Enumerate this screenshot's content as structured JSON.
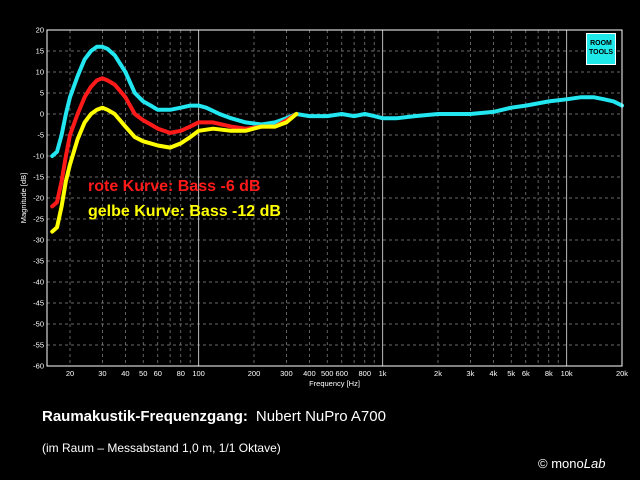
{
  "chart_data": {
    "type": "line",
    "xscale": "log",
    "xlim": [
      15,
      20000
    ],
    "ylim": [
      -60,
      20
    ],
    "grid": true,
    "xlabel": "Frequency [Hz]",
    "ylabel": "Magnitude [dB]",
    "xticks": [
      20,
      30,
      40,
      50,
      60,
      80,
      100,
      200,
      300,
      400,
      500,
      600,
      800,
      1000,
      2000,
      3000,
      4000,
      5000,
      6000,
      8000,
      10000,
      20000
    ],
    "xtick_labels": [
      "20",
      "30",
      "40",
      "50",
      "60",
      "80",
      "100",
      "200",
      "300",
      "400",
      "500",
      "600",
      "800",
      "1k",
      "2k",
      "3k",
      "4k",
      "5k",
      "6k",
      "8k",
      "10k",
      "20k"
    ],
    "yticks": [
      20,
      15,
      10,
      5,
      0,
      -5,
      -10,
      -15,
      -20,
      -25,
      -30,
      -35,
      -40,
      -45,
      -50,
      -55,
      -60
    ],
    "series": [
      {
        "color": "#22e6f0",
        "points": [
          [
            16,
            -10
          ],
          [
            17,
            -9
          ],
          [
            18,
            -5
          ],
          [
            19,
            0
          ],
          [
            20,
            4
          ],
          [
            22,
            9
          ],
          [
            24,
            13
          ],
          [
            26,
            15
          ],
          [
            28,
            16
          ],
          [
            30,
            16
          ],
          [
            32,
            15.5
          ],
          [
            35,
            14
          ],
          [
            40,
            10
          ],
          [
            45,
            5
          ],
          [
            50,
            3
          ],
          [
            55,
            2
          ],
          [
            60,
            1
          ],
          [
            70,
            1
          ],
          [
            80,
            1.5
          ],
          [
            90,
            2
          ],
          [
            100,
            2
          ],
          [
            110,
            1.5
          ],
          [
            130,
            0
          ],
          [
            150,
            -1
          ],
          [
            180,
            -2
          ],
          [
            220,
            -2.5
          ],
          [
            260,
            -2
          ],
          [
            300,
            -1
          ],
          [
            340,
            0
          ],
          [
            400,
            -0.5
          ],
          [
            500,
            -0.5
          ],
          [
            600,
            0
          ],
          [
            700,
            -0.5
          ],
          [
            800,
            0
          ],
          [
            900,
            -0.5
          ],
          [
            1000,
            -1
          ],
          [
            1200,
            -1
          ],
          [
            1500,
            -0.5
          ],
          [
            2000,
            0
          ],
          [
            3000,
            0
          ],
          [
            4000,
            0.5
          ],
          [
            5000,
            1.5
          ],
          [
            6000,
            2
          ],
          [
            8000,
            3
          ],
          [
            10000,
            3.5
          ],
          [
            12000,
            4
          ],
          [
            14000,
            4
          ],
          [
            16000,
            3.5
          ],
          [
            18000,
            3
          ],
          [
            20000,
            2
          ]
        ]
      },
      {
        "color": "#ff1a1a",
        "points": [
          [
            16,
            -22
          ],
          [
            17,
            -21
          ],
          [
            18,
            -16
          ],
          [
            19,
            -10
          ],
          [
            20,
            -5
          ],
          [
            22,
            0
          ],
          [
            24,
            4
          ],
          [
            26,
            6.5
          ],
          [
            28,
            8
          ],
          [
            30,
            8.5
          ],
          [
            32,
            8
          ],
          [
            35,
            7
          ],
          [
            40,
            4
          ],
          [
            45,
            0
          ],
          [
            50,
            -1.5
          ],
          [
            55,
            -2.5
          ],
          [
            60,
            -3.5
          ],
          [
            70,
            -4.5
          ],
          [
            80,
            -4
          ],
          [
            90,
            -3
          ],
          [
            100,
            -2
          ],
          [
            120,
            -2
          ],
          [
            150,
            -3
          ],
          [
            180,
            -3.5
          ],
          [
            220,
            -3
          ],
          [
            260,
            -3
          ],
          [
            300,
            -1.5
          ],
          [
            340,
            0
          ]
        ]
      },
      {
        "color": "#ffff00",
        "points": [
          [
            16,
            -28
          ],
          [
            17,
            -27
          ],
          [
            18,
            -22
          ],
          [
            19,
            -16
          ],
          [
            20,
            -12
          ],
          [
            22,
            -6
          ],
          [
            24,
            -2
          ],
          [
            26,
            0
          ],
          [
            28,
            1
          ],
          [
            30,
            1.5
          ],
          [
            32,
            1
          ],
          [
            35,
            0
          ],
          [
            40,
            -3
          ],
          [
            45,
            -5.5
          ],
          [
            50,
            -6.5
          ],
          [
            55,
            -7
          ],
          [
            60,
            -7.5
          ],
          [
            70,
            -8
          ],
          [
            80,
            -7
          ],
          [
            90,
            -5.5
          ],
          [
            100,
            -4
          ],
          [
            120,
            -3.5
          ],
          [
            150,
            -4
          ],
          [
            180,
            -4
          ],
          [
            220,
            -3
          ],
          [
            260,
            -3
          ],
          [
            300,
            -2
          ],
          [
            340,
            0
          ]
        ]
      }
    ],
    "annotations": [
      {
        "text": "rote Kurve: Bass -6 dB",
        "color": "#ff1a1a"
      },
      {
        "text": "gelbe Kurve: Bass -12 dB",
        "color": "#ffff00"
      }
    ]
  },
  "logo": {
    "line1": "ROOM",
    "line2": "TOOLS"
  },
  "caption": {
    "title": "Raumakustik-Frequenzgang:",
    "model": "Nubert NuPro A700",
    "subtitle": "(im Raum – Messabstand 1,0 m, 1/1 Oktave)"
  },
  "credit": {
    "symbol": "©",
    "name_a": "mono",
    "name_b": "Lab"
  }
}
